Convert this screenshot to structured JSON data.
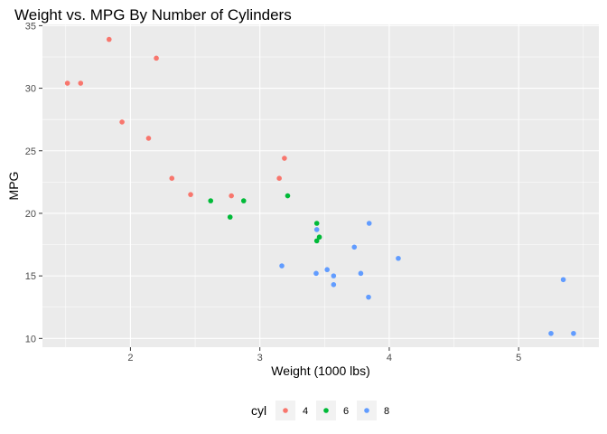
{
  "chart_data": {
    "type": "scatter",
    "title": "Weight vs. MPG By Number of Cylinders",
    "xlabel": "Weight (1000 lbs)",
    "ylabel": "MPG",
    "xlim": [
      1.32,
      5.62
    ],
    "ylim": [
      9.3,
      35.1
    ],
    "x_ticks": [
      2,
      3,
      4,
      5
    ],
    "y_ticks": [
      10,
      15,
      20,
      25,
      30,
      35
    ],
    "grid": true,
    "legend": {
      "title": "cyl",
      "position": "bottom"
    },
    "series": [
      {
        "name": "4",
        "color": "#F8766D",
        "points": [
          {
            "x": 2.32,
            "y": 22.8
          },
          {
            "x": 3.19,
            "y": 24.4
          },
          {
            "x": 3.15,
            "y": 22.8
          },
          {
            "x": 2.2,
            "y": 32.4
          },
          {
            "x": 1.615,
            "y": 30.4
          },
          {
            "x": 1.835,
            "y": 33.9
          },
          {
            "x": 2.465,
            "y": 21.5
          },
          {
            "x": 1.935,
            "y": 27.3
          },
          {
            "x": 2.14,
            "y": 26.0
          },
          {
            "x": 1.513,
            "y": 30.4
          },
          {
            "x": 2.78,
            "y": 21.4
          }
        ]
      },
      {
        "name": "6",
        "color": "#00BA38",
        "points": [
          {
            "x": 2.62,
            "y": 21.0
          },
          {
            "x": 2.875,
            "y": 21.0
          },
          {
            "x": 3.215,
            "y": 21.4
          },
          {
            "x": 3.46,
            "y": 18.1
          },
          {
            "x": 3.44,
            "y": 19.2
          },
          {
            "x": 3.44,
            "y": 17.8
          },
          {
            "x": 2.77,
            "y": 19.7
          }
        ]
      },
      {
        "name": "8",
        "color": "#619CFF",
        "points": [
          {
            "x": 3.44,
            "y": 18.7
          },
          {
            "x": 3.57,
            "y": 14.3
          },
          {
            "x": 4.07,
            "y": 16.4
          },
          {
            "x": 3.73,
            "y": 17.3
          },
          {
            "x": 3.78,
            "y": 15.2
          },
          {
            "x": 5.25,
            "y": 10.4
          },
          {
            "x": 5.424,
            "y": 10.4
          },
          {
            "x": 5.345,
            "y": 14.7
          },
          {
            "x": 3.52,
            "y": 15.5
          },
          {
            "x": 3.435,
            "y": 15.2
          },
          {
            "x": 3.84,
            "y": 13.3
          },
          {
            "x": 3.845,
            "y": 19.2
          },
          {
            "x": 3.17,
            "y": 15.8
          },
          {
            "x": 3.57,
            "y": 15.0
          }
        ]
      }
    ]
  }
}
